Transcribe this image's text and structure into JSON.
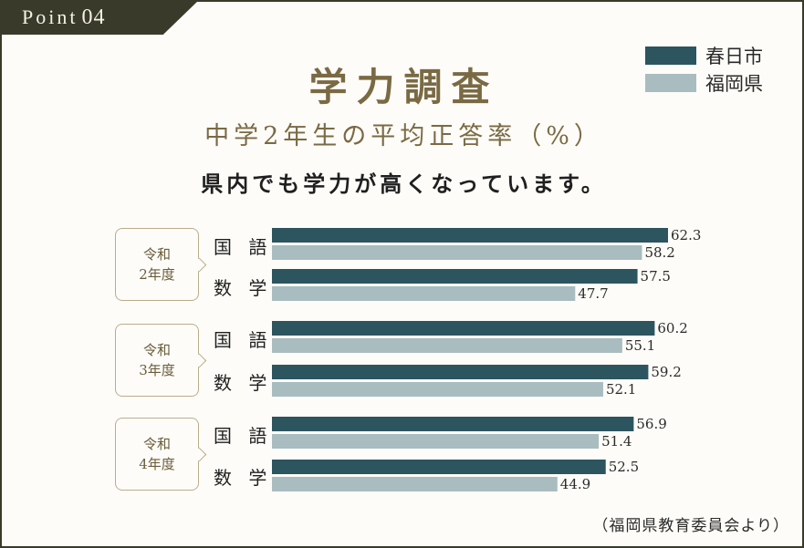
{
  "tab": {
    "word": "Point",
    "number": "04"
  },
  "title_main": "学力調査",
  "title_sub": "中学2年生の平均正答率（%）",
  "subtitle": "県内でも学力が高くなっています。",
  "source": "（福岡県教育委員会より）",
  "colors": {
    "kasuga": "#2c5560",
    "fukuoka": "#a9bcc0"
  },
  "legend": [
    {
      "label": "春日市",
      "color": "#2c5560"
    },
    {
      "label": "福岡県",
      "color": "#a9bcc0"
    }
  ],
  "groups": [
    {
      "line1": "令和",
      "line2": "2年度"
    },
    {
      "line1": "令和",
      "line2": "3年度"
    },
    {
      "line1": "令和",
      "line2": "4年度"
    }
  ],
  "subjects": [
    "国 語",
    "数 学"
  ],
  "chart_data": {
    "type": "bar",
    "orientation": "horizontal",
    "series": [
      {
        "name": "春日市",
        "values": [
          62.3,
          57.5,
          60.2,
          59.2,
          56.9,
          52.5
        ]
      },
      {
        "name": "福岡県",
        "values": [
          58.2,
          47.7,
          55.1,
          52.1,
          51.4,
          44.9
        ]
      }
    ],
    "categories": [
      "令和2年度 国語",
      "令和2年度 数学",
      "令和3年度 国語",
      "令和3年度 数学",
      "令和4年度 国語",
      "令和4年度 数学"
    ],
    "xlim": [
      0,
      62.3
    ],
    "grid": false
  }
}
